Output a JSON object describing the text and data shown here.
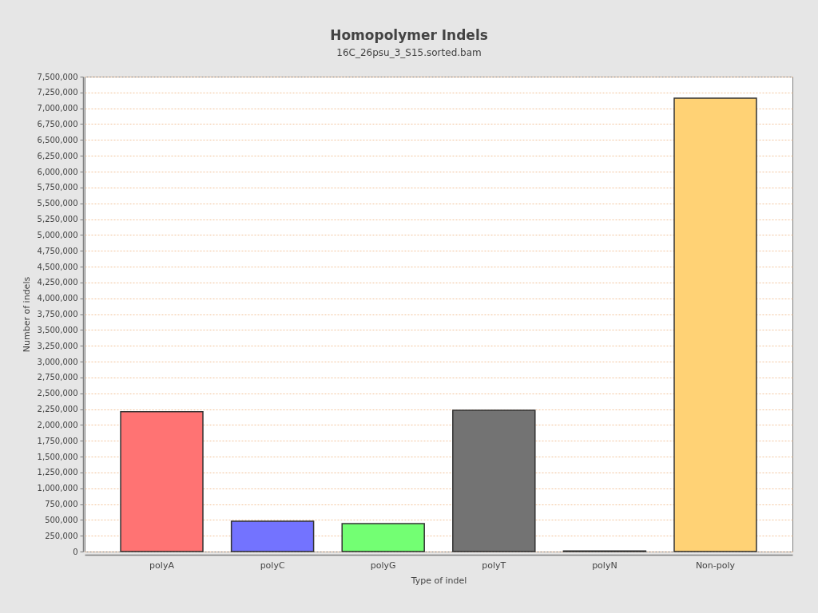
{
  "chart_data": {
    "type": "bar",
    "title": "Homopolymer Indels",
    "subtitle": "16C_26psu_3_S15.sorted.bam",
    "xlabel": "Type of indel",
    "ylabel": "Number of indels",
    "categories": [
      "polyA",
      "polyC",
      "polyG",
      "polyT",
      "polyN",
      "Non-poly"
    ],
    "values": [
      2210000,
      480000,
      440000,
      2230000,
      10000,
      7160000
    ],
    "colors": [
      "#ff7373",
      "#7373ff",
      "#73ff73",
      "#737373",
      "#c8c8c8",
      "#ffd275"
    ],
    "ylim": [
      0,
      7500000
    ],
    "yticks": [
      0,
      {
        "value": 250000,
        "label": "250,000"
      },
      {
        "value": 500000,
        "label": "500,000"
      },
      {
        "value": 750000,
        "label": "750,000"
      },
      {
        "value": 1000000,
        "label": "1,000,000"
      },
      {
        "value": 1250000,
        "label": "1,250,000"
      },
      {
        "value": 1500000,
        "label": "1,500,000"
      },
      {
        "value": 1750000,
        "label": "1,750,000"
      },
      {
        "value": 2000000,
        "label": "2,000,000"
      },
      {
        "value": 2250000,
        "label": "2,250,000"
      },
      {
        "value": 2500000,
        "label": "2,500,000"
      },
      {
        "value": 2750000,
        "label": "2,750,000"
      },
      {
        "value": 3000000,
        "label": "3,000,000"
      },
      {
        "value": 3250000,
        "label": "3,250,000"
      },
      {
        "value": 3500000,
        "label": "3,500,000"
      },
      {
        "value": 3750000,
        "label": "3,750,000"
      },
      {
        "value": 4000000,
        "label": "4,000,000"
      },
      {
        "value": 4250000,
        "label": "4,250,000"
      },
      {
        "value": 4500000,
        "label": "4,500,000"
      },
      {
        "value": 4750000,
        "label": "4,750,000"
      },
      {
        "value": 5000000,
        "label": "5,000,000"
      },
      {
        "value": 5250000,
        "label": "5,250,000"
      },
      {
        "value": 5500000,
        "label": "5,500,000"
      },
      {
        "value": 5750000,
        "label": "5,750,000"
      },
      {
        "value": 6000000,
        "label": "6,000,000"
      },
      {
        "value": 6250000,
        "label": "6,250,000"
      },
      {
        "value": 6500000,
        "label": "6,500,000"
      },
      {
        "value": 6750000,
        "label": "6,750,000"
      },
      {
        "value": 7000000,
        "label": "7,000,000"
      },
      {
        "value": 7250000,
        "label": "7,250,000"
      },
      {
        "value": 7500000,
        "label": "7,500,000"
      }
    ],
    "grid": "y"
  }
}
